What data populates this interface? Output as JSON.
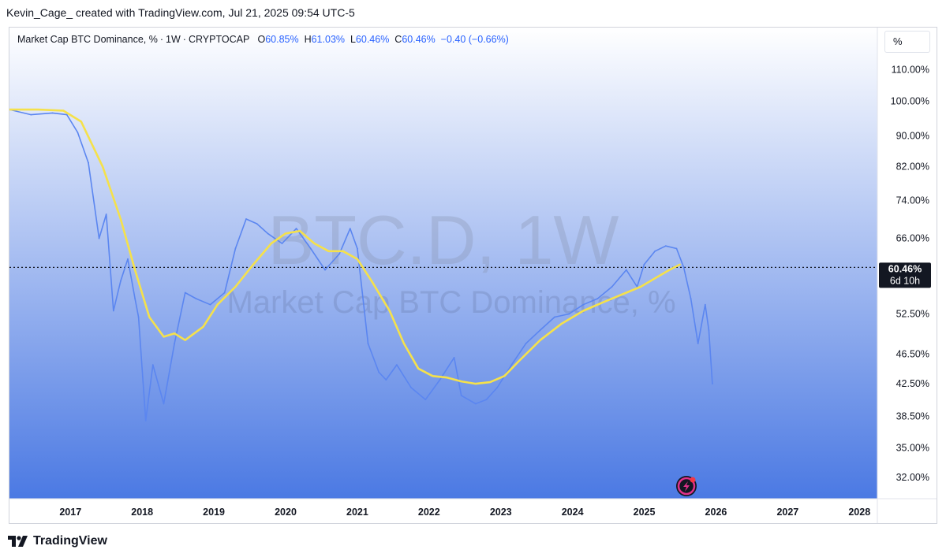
{
  "header": {
    "creator_line": "Kevin_Cage_ created with TradingView.com, Jul 21, 2025 09:54 UTC-5"
  },
  "legend": {
    "symbol": "Market Cap BTC Dominance, %",
    "interval": "1W",
    "exchange": "CRYPTOCAP",
    "o_label": "O",
    "o_value": "60.85%",
    "h_label": "H",
    "h_value": "61.03%",
    "l_label": "L",
    "l_value": "60.46%",
    "c_label": "C",
    "c_value": "60.46%",
    "change": "−0.40 (−0.66%)"
  },
  "scale_button": "%",
  "watermark": {
    "line1": "BTC.D, 1W",
    "line2": "Market Cap BTC Dominance, %"
  },
  "price_tag": {
    "value": "60.46%",
    "countdown": "6d 10h"
  },
  "footer": {
    "brand": "TradingView"
  },
  "colors": {
    "price_line": "#5b86f0",
    "ma_line": "#f5e14b",
    "bg_top": "#ffffff",
    "bg_bottom": "#4b79e3",
    "tag_bg": "#131722",
    "badge": "#e0318a"
  },
  "chart_data": {
    "type": "line",
    "title": "",
    "xlabel": "",
    "ylabel": "",
    "scale": "log",
    "ylim": [
      30,
      125
    ],
    "xlim": [
      2016.2,
      2028.3
    ],
    "x_ticks": [
      "2017",
      "2018",
      "2019",
      "2020",
      "2021",
      "2022",
      "2023",
      "2024",
      "2025",
      "2026",
      "2027",
      "2028"
    ],
    "y_ticks": [
      "110.00%",
      "100.00%",
      "90.00%",
      "82.00%",
      "74.00%",
      "66.00%",
      "52.50%",
      "46.50%",
      "42.50%",
      "38.50%",
      "35.00%",
      "32.00%"
    ],
    "y_tick_values": [
      110,
      100,
      90,
      82,
      74,
      66,
      52.5,
      46.5,
      42.5,
      38.5,
      35,
      32
    ],
    "last_price": 60.46,
    "series": [
      {
        "name": "",
        "x": [
          2016.2,
          2016.5,
          2016.8,
          2017.0,
          2017.15,
          2017.3,
          2017.45,
          2017.55,
          2017.65,
          2017.75,
          2017.85,
          2017.95,
          2018.0,
          2018.1,
          2018.2,
          2018.35,
          2018.5,
          2018.65,
          2018.8,
          2019.0,
          2019.2,
          2019.35,
          2019.5,
          2019.65,
          2019.8,
          2020.0,
          2020.2,
          2020.4,
          2020.6,
          2020.8,
          2020.95,
          2021.05,
          2021.2,
          2021.35,
          2021.45,
          2021.6,
          2021.8,
          2022.0,
          2022.2,
          2022.4,
          2022.5,
          2022.7,
          2022.85,
          2023.0,
          2023.2,
          2023.4,
          2023.6,
          2023.8,
          2024.0,
          2024.2,
          2024.4,
          2024.6,
          2024.8,
          2024.95,
          2025.05,
          2025.2,
          2025.35,
          2025.5,
          2025.6,
          2025.7,
          2025.8,
          2025.9,
          2025.95,
          2026.0
        ],
        "y": [
          97.5,
          96.0,
          96.5,
          96.0,
          91.0,
          83.0,
          66.0,
          71.0,
          53.0,
          58.0,
          62.0,
          55.0,
          52.0,
          38.0,
          45.0,
          40.0,
          48.0,
          56.0,
          55.0,
          54.0,
          56.0,
          64.0,
          70.0,
          69.0,
          67.0,
          65.0,
          68.0,
          64.0,
          60.0,
          63.0,
          68.0,
          64.0,
          48.0,
          44.0,
          43.0,
          45.0,
          42.0,
          40.5,
          43.0,
          46.0,
          41.0,
          40.0,
          40.5,
          42.0,
          45.0,
          48.0,
          50.0,
          52.0,
          52.5,
          54.0,
          55.0,
          57.0,
          60.0,
          57.0,
          61.0,
          63.5,
          64.5,
          64.0,
          60.5,
          55.0,
          48.0,
          54.0,
          50.0,
          42.5
        ]
      },
      {
        "name": "",
        "x": [
          2016.2,
          2016.6,
          2016.95,
          2017.2,
          2017.5,
          2017.75,
          2017.95,
          2018.15,
          2018.35,
          2018.5,
          2018.65,
          2018.9,
          2019.1,
          2019.35,
          2019.6,
          2019.85,
          2020.05,
          2020.25,
          2020.45,
          2020.65,
          2020.85,
          2021.05,
          2021.25,
          2021.5,
          2021.7,
          2021.9,
          2022.1,
          2022.3,
          2022.5,
          2022.7,
          2022.9,
          2023.1,
          2023.3,
          2023.6,
          2023.9,
          2024.2,
          2024.5,
          2024.8,
          2025.0,
          2025.2,
          2025.4,
          2025.55
        ],
        "y": [
          97.5,
          97.5,
          97.2,
          94.0,
          82.0,
          70.0,
          60.0,
          52.0,
          49.0,
          49.5,
          48.5,
          50.5,
          54.0,
          57.0,
          61.0,
          65.0,
          67.0,
          67.5,
          65.0,
          63.5,
          63.5,
          62.0,
          58.0,
          53.0,
          48.0,
          44.5,
          43.5,
          43.3,
          42.8,
          42.5,
          42.7,
          43.5,
          45.5,
          48.5,
          51.0,
          53.0,
          54.5,
          56.0,
          57.0,
          58.5,
          60.0,
          61.0
        ]
      }
    ]
  }
}
